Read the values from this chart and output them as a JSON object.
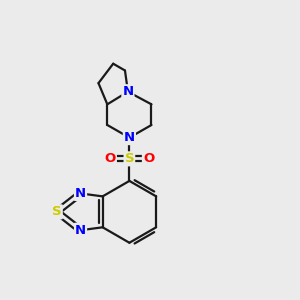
{
  "bg_color": "#ebebeb",
  "bond_color": "#1a1a1a",
  "N_color": "#0000ff",
  "S_color": "#cccc00",
  "O_color": "#ff0000",
  "line_width": 1.6,
  "font_size_atom": 9.5,
  "xlim": [
    0,
    10
  ],
  "ylim": [
    0,
    10
  ]
}
